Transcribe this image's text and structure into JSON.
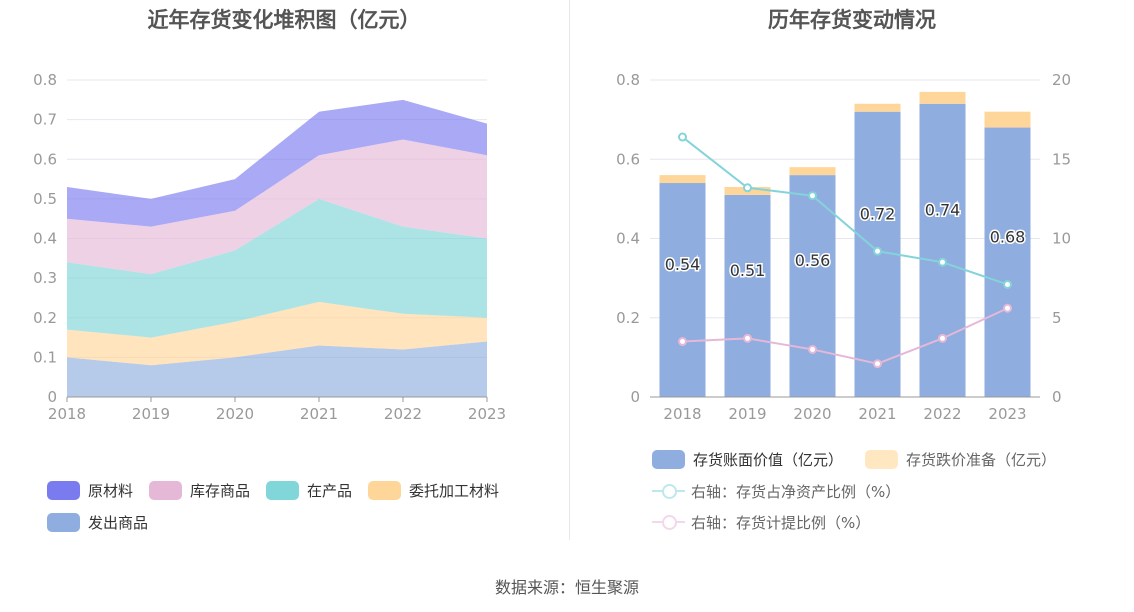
{
  "footer": {
    "source_text": "数据来源：恒生聚源"
  },
  "chart_data": [
    {
      "type": "area",
      "stacked": true,
      "title": "近年存货变化堆积图（亿元）",
      "categories": [
        "2018",
        "2019",
        "2020",
        "2021",
        "2022",
        "2023"
      ],
      "y_ticks": [
        "0",
        "0.1",
        "0.2",
        "0.3",
        "0.4",
        "0.5",
        "0.6",
        "0.7",
        "0.8"
      ],
      "ylim": [
        0,
        0.8
      ],
      "grid": true,
      "legend_position": "bottom",
      "series": [
        {
          "name": "发出商品",
          "color": "#8fadde",
          "values": [
            0.1,
            0.08,
            0.1,
            0.13,
            0.12,
            0.14
          ]
        },
        {
          "name": "委托加工材料",
          "color": "#ffd699",
          "values": [
            0.07,
            0.07,
            0.09,
            0.11,
            0.09,
            0.06
          ]
        },
        {
          "name": "在产品",
          "color": "#80d6d8",
          "values": [
            0.17,
            0.16,
            0.18,
            0.26,
            0.22,
            0.2
          ]
        },
        {
          "name": "库存商品",
          "color": "#e6b8d8",
          "values": [
            0.11,
            0.12,
            0.1,
            0.11,
            0.22,
            0.21
          ]
        },
        {
          "name": "原材料",
          "color": "#7b7bf0",
          "values": [
            0.08,
            0.07,
            0.08,
            0.11,
            0.1,
            0.08
          ]
        }
      ],
      "legend": {
        "row1": [
          "原材料",
          "库存商品",
          "在产品",
          "委托加工材料"
        ],
        "row2": [
          "发出商品"
        ]
      }
    },
    {
      "type": "bar",
      "stacked": true,
      "title": "历年存货变动情况",
      "categories": [
        "2018",
        "2019",
        "2020",
        "2021",
        "2022",
        "2023"
      ],
      "y_ticks": [
        "0",
        "0.2",
        "0.4",
        "0.6",
        "0.8"
      ],
      "ylim": [
        0,
        0.8
      ],
      "y2_ticks": [
        "0",
        "5",
        "10",
        "15",
        "20"
      ],
      "y2lim": [
        0,
        20
      ],
      "grid": true,
      "legend_position": "bottom",
      "series": [
        {
          "name": "存货账面价值（亿元）",
          "type": "bar",
          "axis": "left",
          "color": "#8fadde",
          "values": [
            0.54,
            0.51,
            0.56,
            0.72,
            0.74,
            0.68
          ],
          "data_labels": [
            "0.54",
            "0.51",
            "0.56",
            "0.72",
            "0.74",
            "0.68"
          ]
        },
        {
          "name": "存货跌价准备（亿元）",
          "type": "bar",
          "axis": "left",
          "color": "#ffd699",
          "values": [
            0.02,
            0.02,
            0.02,
            0.02,
            0.03,
            0.04
          ]
        },
        {
          "name": "右轴：存货占净资产比例（%）",
          "type": "line",
          "axis": "right",
          "color": "#85d3da",
          "values": [
            16.4,
            13.2,
            12.7,
            9.2,
            8.5,
            7.1
          ]
        },
        {
          "name": "右轴：存货计提比例（%）",
          "type": "line",
          "axis": "right",
          "color": "#e6b8d8",
          "values": [
            3.5,
            3.7,
            3.0,
            2.1,
            3.7,
            5.6
          ]
        }
      ]
    }
  ]
}
